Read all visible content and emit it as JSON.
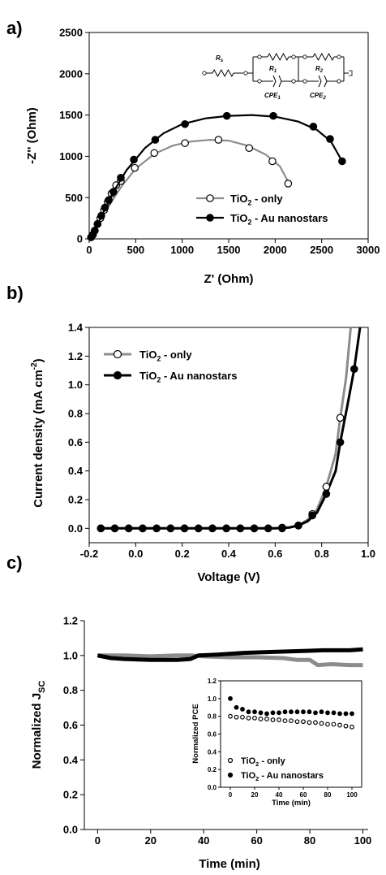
{
  "panels": [
    {
      "letter": "a)"
    },
    {
      "letter": "b)"
    },
    {
      "letter": "c)"
    }
  ],
  "colors": {
    "tio2_only": "#8c8c8c",
    "tio2_au": "#000000"
  },
  "chart_data": [
    {
      "id": "a",
      "type": "scatter",
      "title": "",
      "xlabel": "Z' (Ohm)",
      "ylabel": "-Z'' (Ohm)",
      "xlim": [
        0,
        3000
      ],
      "ylim": [
        0,
        2500
      ],
      "xticks": [
        0,
        500,
        1000,
        1500,
        2000,
        2500,
        3000
      ],
      "yticks": [
        0,
        500,
        1000,
        1500,
        2000,
        2500
      ],
      "grid": false,
      "legend_position": "lower-right",
      "series": [
        {
          "name": "TiO2 - only",
          "marker": "open-circle",
          "line_color": "#8c8c8c",
          "points": [
            [
              20,
              20
            ],
            [
              40,
              50
            ],
            [
              60,
              100
            ],
            [
              90,
              180
            ],
            [
              120,
              250
            ],
            [
              160,
              350
            ],
            [
              200,
              450
            ],
            [
              240,
              550
            ],
            [
              290,
              650
            ],
            [
              340,
              700
            ],
            [
              490,
              860
            ],
            [
              700,
              1040
            ],
            [
              1030,
              1160
            ],
            [
              1390,
              1200
            ],
            [
              1720,
              1100
            ],
            [
              1970,
              940
            ],
            [
              2140,
              670
            ]
          ],
          "fit": [
            [
              0,
              0
            ],
            [
              80,
              150
            ],
            [
              200,
              380
            ],
            [
              350,
              640
            ],
            [
              500,
              850
            ],
            [
              700,
              1030
            ],
            [
              900,
              1130
            ],
            [
              1100,
              1180
            ],
            [
              1300,
              1200
            ],
            [
              1500,
              1190
            ],
            [
              1700,
              1130
            ],
            [
              1900,
              1020
            ],
            [
              2050,
              880
            ],
            [
              2150,
              670
            ]
          ]
        },
        {
          "name": "TiO2 - Au nanostars",
          "marker": "filled-circle",
          "line_color": "#000000",
          "points": [
            [
              20,
              20
            ],
            [
              40,
              50
            ],
            [
              60,
              100
            ],
            [
              90,
              180
            ],
            [
              130,
              280
            ],
            [
              170,
              380
            ],
            [
              210,
              470
            ],
            [
              260,
              570
            ],
            [
              340,
              740
            ],
            [
              480,
              960
            ],
            [
              710,
              1200
            ],
            [
              1030,
              1390
            ],
            [
              1480,
              1490
            ],
            [
              1980,
              1490
            ],
            [
              2410,
              1360
            ],
            [
              2590,
              1210
            ],
            [
              2720,
              940
            ]
          ],
          "fit": [
            [
              0,
              0
            ],
            [
              100,
              200
            ],
            [
              250,
              550
            ],
            [
              400,
              830
            ],
            [
              600,
              1100
            ],
            [
              800,
              1280
            ],
            [
              1000,
              1390
            ],
            [
              1250,
              1460
            ],
            [
              1500,
              1490
            ],
            [
              1750,
              1500
            ],
            [
              2000,
              1480
            ],
            [
              2250,
              1420
            ],
            [
              2450,
              1320
            ],
            [
              2600,
              1180
            ],
            [
              2720,
              940
            ]
          ]
        }
      ],
      "inset": {
        "labels": [
          "R",
          "s",
          "R",
          "1",
          "R",
          "2",
          "CPE",
          "1",
          "CPE",
          "2"
        ]
      }
    },
    {
      "id": "b",
      "type": "line",
      "title": "",
      "xlabel": "Voltage (V)",
      "ylabel": "Current density (mA cm",
      "ylabel_sup": "-2",
      "ylabel_close": ")",
      "xlim": [
        -0.2,
        1.0
      ],
      "ylim": [
        -0.1,
        1.4
      ],
      "xticks": [
        -0.2,
        0.0,
        0.2,
        0.4,
        0.6,
        0.8,
        1.0
      ],
      "yticks": [
        0.0,
        0.2,
        0.4,
        0.6,
        0.8,
        1.0,
        1.2,
        1.4
      ],
      "grid": false,
      "legend_position": "top-left",
      "x": [
        -0.15,
        -0.09,
        -0.03,
        0.03,
        0.09,
        0.15,
        0.21,
        0.27,
        0.33,
        0.39,
        0.45,
        0.51,
        0.57,
        0.63,
        0.7,
        0.76,
        0.82,
        0.88,
        0.94
      ],
      "series": [
        {
          "name": "TiO2 - only",
          "marker": "open-circle",
          "line_color": "#8c8c8c",
          "values": [
            0,
            0,
            0,
            0,
            0,
            0,
            0,
            0,
            0,
            0,
            0,
            0,
            0,
            0,
            0.02,
            0.1,
            0.29,
            0.77,
            1.45
          ],
          "curve": [
            [
              -0.15,
              0
            ],
            [
              0.6,
              0
            ],
            [
              0.66,
              0.005
            ],
            [
              0.7,
              0.02
            ],
            [
              0.74,
              0.06
            ],
            [
              0.78,
              0.13
            ],
            [
              0.82,
              0.29
            ],
            [
              0.86,
              0.52
            ],
            [
              0.88,
              0.77
            ],
            [
              0.905,
              1.05
            ],
            [
              0.925,
              1.4
            ]
          ]
        },
        {
          "name": "TiO2 - Au nanostars",
          "marker": "filled-circle",
          "line_color": "#000000",
          "values": [
            0,
            0,
            0,
            0,
            0,
            0,
            0,
            0,
            0,
            0,
            0,
            0,
            0,
            0.005,
            0.02,
            0.09,
            0.24,
            0.6,
            1.11
          ],
          "curve": [
            [
              -0.15,
              0
            ],
            [
              0.6,
              0
            ],
            [
              0.66,
              0.006
            ],
            [
              0.7,
              0.02
            ],
            [
              0.74,
              0.05
            ],
            [
              0.78,
              0.11
            ],
            [
              0.82,
              0.24
            ],
            [
              0.86,
              0.4
            ],
            [
              0.88,
              0.6
            ],
            [
              0.91,
              0.85
            ],
            [
              0.94,
              1.11
            ],
            [
              0.965,
              1.4
            ]
          ]
        }
      ]
    },
    {
      "id": "c",
      "type": "line",
      "title": "",
      "xlabel": "Time (min)",
      "ylabel": "Normalized J",
      "ylabel_sub": "SC",
      "xlim": [
        -5,
        102
      ],
      "ylim": [
        0.0,
        1.2
      ],
      "xticks": [
        0,
        20,
        40,
        60,
        80,
        100
      ],
      "yticks": [
        0.0,
        0.2,
        0.4,
        0.6,
        0.8,
        1.0,
        1.2
      ],
      "grid": false,
      "series": [
        {
          "name": "TiO2 - only",
          "line_color": "#8c8c8c",
          "points": [
            [
              0,
              1.0
            ],
            [
              10,
              1.0
            ],
            [
              20,
              0.995
            ],
            [
              30,
              1.0
            ],
            [
              35,
              1.0
            ],
            [
              40,
              0.995
            ],
            [
              50,
              0.99
            ],
            [
              60,
              0.99
            ],
            [
              70,
              0.985
            ],
            [
              75,
              0.975
            ],
            [
              80,
              0.975
            ],
            [
              83,
              0.945
            ],
            [
              88,
              0.95
            ],
            [
              95,
              0.945
            ],
            [
              100,
              0.945
            ]
          ]
        },
        {
          "name": "TiO2 - Au nanostars",
          "line_color": "#000000",
          "points": [
            [
              0,
              1.0
            ],
            [
              5,
              0.985
            ],
            [
              10,
              0.98
            ],
            [
              20,
              0.975
            ],
            [
              30,
              0.975
            ],
            [
              35,
              0.98
            ],
            [
              38,
              1.0
            ],
            [
              45,
              1.005
            ],
            [
              55,
              1.015
            ],
            [
              65,
              1.02
            ],
            [
              75,
              1.025
            ],
            [
              85,
              1.03
            ],
            [
              95,
              1.03
            ],
            [
              100,
              1.035
            ]
          ]
        }
      ],
      "inset": {
        "type": "scatter",
        "xlabel": "Time (min)",
        "ylabel": "Normalized PCE",
        "xlim": [
          -8,
          108
        ],
        "ylim": [
          0.0,
          1.2
        ],
        "xticks": [
          0,
          20,
          40,
          60,
          80,
          100
        ],
        "yticks": [
          0.0,
          0.2,
          0.4,
          0.6,
          0.8,
          1.0,
          1.2
        ],
        "legend_position": "lower-left",
        "series": [
          {
            "name": "TiO2 - only",
            "marker": "open-circle",
            "x": [
              0,
              5,
              10,
              15,
              20,
              25,
              30,
              35,
              40,
              45,
              50,
              55,
              60,
              65,
              70,
              75,
              80,
              85,
              90,
              95,
              100
            ],
            "values": [
              0.8,
              0.79,
              0.79,
              0.78,
              0.78,
              0.77,
              0.77,
              0.76,
              0.76,
              0.75,
              0.75,
              0.74,
              0.74,
              0.73,
              0.73,
              0.72,
              0.71,
              0.71,
              0.7,
              0.69,
              0.68
            ]
          },
          {
            "name": "TiO2 - Au nanostars",
            "marker": "filled-circle",
            "x": [
              0,
              5,
              10,
              15,
              20,
              25,
              30,
              35,
              40,
              45,
              50,
              55,
              60,
              65,
              70,
              75,
              80,
              85,
              90,
              95,
              100
            ],
            "values": [
              1.0,
              0.9,
              0.88,
              0.85,
              0.85,
              0.84,
              0.83,
              0.84,
              0.84,
              0.85,
              0.85,
              0.85,
              0.85,
              0.85,
              0.84,
              0.85,
              0.84,
              0.84,
              0.83,
              0.83,
              0.83
            ]
          }
        ]
      }
    }
  ]
}
